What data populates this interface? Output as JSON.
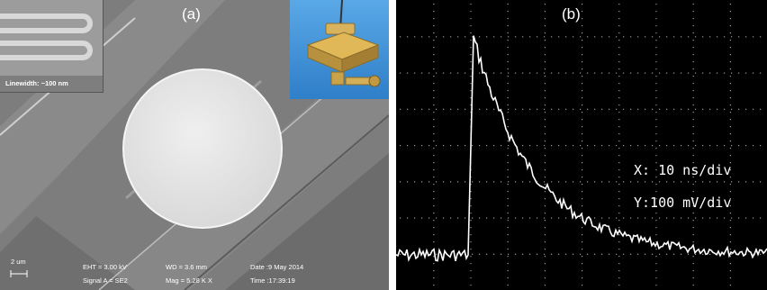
{
  "panel_a": {
    "label": "(a)",
    "inset_linewidth": "Linewidth: ~100 nm",
    "scale_bar": "2 um",
    "eht": "EHT = 3.00 kV",
    "signal": "Signal A = SE2",
    "wd": "WD = 3.6 mm",
    "mag": "Mag = 5.28 K X",
    "date": "Date :9 May 2014",
    "time": "Time :17:39:19"
  },
  "panel_b": {
    "label": "(b)",
    "x_scale": "X: 10 ns/div",
    "y_scale": "Y:100 mV/div"
  },
  "colors": {
    "sem_background": "#7a7a7a",
    "sem_disk": "#e6e6e6",
    "scope_background": "#000000",
    "trace": "#ffffff",
    "inset_sky": "#3f8fd6",
    "connector_gold": "#c9a24a"
  }
}
